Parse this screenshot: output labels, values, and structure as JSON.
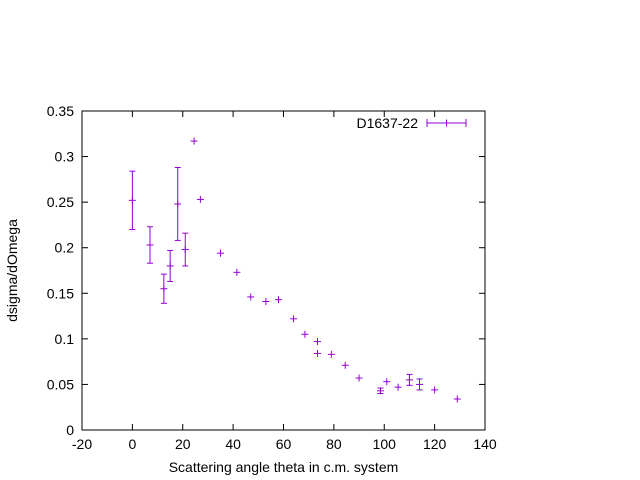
{
  "chart_data": {
    "type": "scatter",
    "title": "",
    "xlabel": "Scattering angle theta in c.m. system",
    "ylabel": "dsigma/dOmega",
    "xlim": [
      -20,
      140
    ],
    "ylim": [
      0,
      0.35
    ],
    "xticks": [
      "-20",
      "0",
      "20",
      "40",
      "60",
      "80",
      "100",
      "120",
      "140"
    ],
    "yticks": [
      "0",
      "0.05",
      "0.1",
      "0.15",
      "0.2",
      "0.25",
      "0.3",
      "0.35"
    ],
    "grid": false,
    "legend_position": "top-right",
    "series": [
      {
        "name": "D1637-22",
        "color": "#9400d3",
        "marker": "plus",
        "points": [
          {
            "x": 0,
            "y": 0.252,
            "err": 0.032
          },
          {
            "x": 7,
            "y": 0.203,
            "err": 0.02
          },
          {
            "x": 12.5,
            "y": 0.155,
            "err": 0.016
          },
          {
            "x": 15,
            "y": 0.18,
            "err": 0.017
          },
          {
            "x": 18,
            "y": 0.248,
            "err": 0.04
          },
          {
            "x": 21,
            "y": 0.198,
            "err": 0.018
          },
          {
            "x": 24.5,
            "y": 0.317,
            "err": 0
          },
          {
            "x": 27,
            "y": 0.253,
            "err": 0
          },
          {
            "x": 35,
            "y": 0.194,
            "err": 0
          },
          {
            "x": 41.5,
            "y": 0.173,
            "err": 0
          },
          {
            "x": 47,
            "y": 0.146,
            "err": 0
          },
          {
            "x": 53,
            "y": 0.141,
            "err": 0
          },
          {
            "x": 58,
            "y": 0.143,
            "err": 0
          },
          {
            "x": 64,
            "y": 0.122,
            "err": 0
          },
          {
            "x": 68.5,
            "y": 0.105,
            "err": 0
          },
          {
            "x": 73.5,
            "y": 0.097,
            "err": 0
          },
          {
            "x": 73.5,
            "y": 0.084,
            "err": 0
          },
          {
            "x": 79,
            "y": 0.083,
            "err": 0
          },
          {
            "x": 84.5,
            "y": 0.071,
            "err": 0
          },
          {
            "x": 90,
            "y": 0.057,
            "err": 0
          },
          {
            "x": 98.5,
            "y": 0.043,
            "err": 0.003
          },
          {
            "x": 101,
            "y": 0.053,
            "err": 0
          },
          {
            "x": 105.5,
            "y": 0.047,
            "err": 0
          },
          {
            "x": 110,
            "y": 0.055,
            "err": 0.006
          },
          {
            "x": 114,
            "y": 0.05,
            "err": 0.006
          },
          {
            "x": 120,
            "y": 0.044,
            "err": 0
          },
          {
            "x": 129,
            "y": 0.034,
            "err": 0
          }
        ]
      }
    ]
  }
}
